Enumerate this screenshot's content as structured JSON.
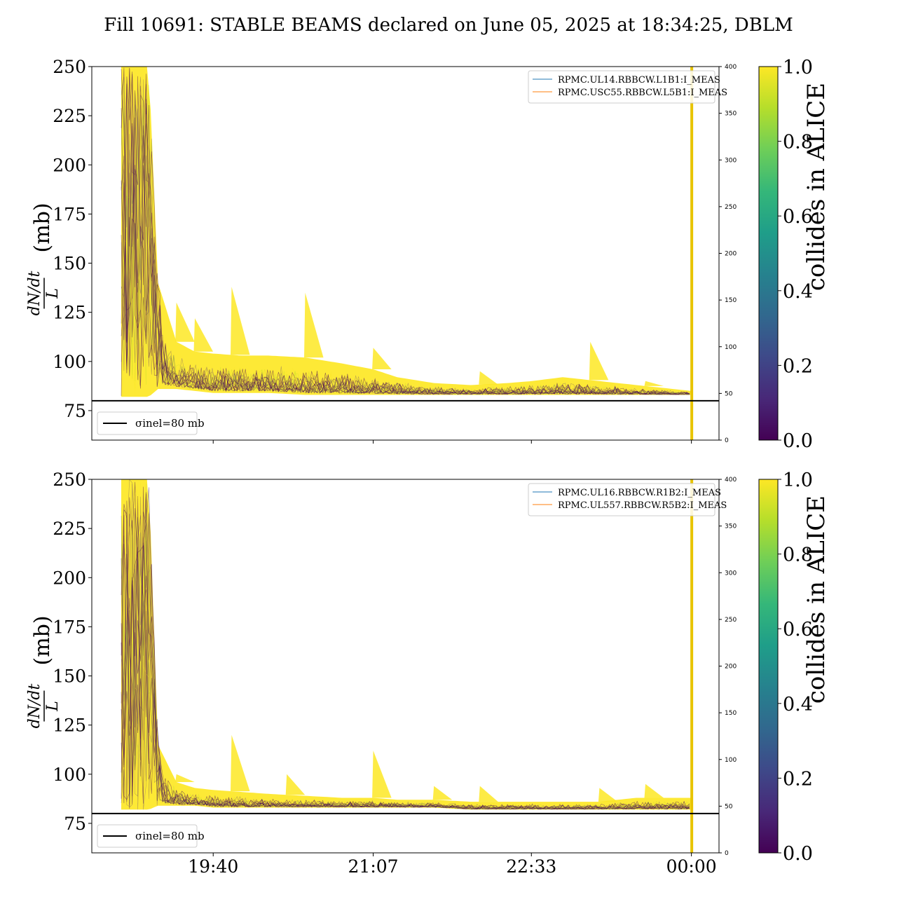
{
  "title": "Fill 10691: STABLE BEAMS declared on June 05, 2025 at 18:34:25, DBLM",
  "colors": {
    "viridis": [
      "#440154",
      "#482878",
      "#3e4989",
      "#31688e",
      "#26828e",
      "#1f9e89",
      "#35b779",
      "#6ece58",
      "#b5de2b",
      "#fde725"
    ],
    "line_blue": "#1f77b4",
    "line_orange": "#ff7f0e",
    "reference_line": "#000000",
    "marker_line": "#e8c400"
  },
  "chart_data": [
    {
      "type": "line",
      "panel": "top",
      "ylabel_numerator": "dN/dt",
      "ylabel_denominator": "L",
      "ylabel_unit": "(mb)",
      "ylim": [
        60,
        250
      ],
      "yticks": [
        75,
        100,
        125,
        150,
        175,
        200,
        225,
        250
      ],
      "y2lim": [
        0,
        400
      ],
      "y2ticks": [
        0,
        50,
        100,
        150,
        200,
        250,
        300,
        350,
        400
      ],
      "x_time_range": [
        "18:34",
        "00:15"
      ],
      "xticks": [
        "19:40",
        "21:07",
        "22:33",
        "00:00"
      ],
      "legend": [
        "RPMC.UL14.RBBCW.L1B1:I_MEAS",
        "RPMC.USC55.RBBCW.L5B1:I_MEAS"
      ],
      "legend_placement": "top-right",
      "reference": {
        "label": "σinel=80 mb",
        "y": 80,
        "legend_placement": "bottom-left"
      },
      "marker_time": "00:00",
      "colorbar": {
        "label": "collides in ALICE",
        "range": [
          0.0,
          1.0
        ],
        "ticks": [
          "0.0",
          "0.2",
          "0.4",
          "0.6",
          "0.8",
          "1.0"
        ]
      },
      "envelope": {
        "times": [
          "18:50",
          "19:00",
          "19:05",
          "19:10",
          "19:20",
          "19:30",
          "19:40",
          "19:55",
          "20:10",
          "20:30",
          "20:50",
          "21:07",
          "21:20",
          "21:40",
          "22:00",
          "22:20",
          "22:33",
          "22:50",
          "23:10",
          "23:30",
          "23:50",
          "00:00"
        ],
        "upper": [
          250,
          250,
          250,
          140,
          110,
          105,
          104,
          103,
          103,
          102,
          99,
          96,
          92,
          89,
          88,
          89,
          90,
          92,
          90,
          88,
          86,
          85
        ],
        "lower": [
          82,
          82,
          82,
          86,
          86,
          85,
          84,
          84,
          84,
          83,
          83,
          83,
          83,
          83,
          83,
          83,
          83,
          83,
          83,
          83,
          83,
          83
        ]
      },
      "spikes": [
        {
          "time": "19:20",
          "value": 130
        },
        {
          "time": "19:30",
          "value": 122
        },
        {
          "time": "19:50",
          "value": 138
        },
        {
          "time": "20:30",
          "value": 135
        },
        {
          "time": "21:07",
          "value": 107
        },
        {
          "time": "22:05",
          "value": 95
        },
        {
          "time": "23:05",
          "value": 110
        },
        {
          "time": "23:35",
          "value": 90
        }
      ]
    },
    {
      "type": "line",
      "panel": "bottom",
      "ylabel_numerator": "dN/dt",
      "ylabel_denominator": "L",
      "ylabel_unit": "(mb)",
      "ylim": [
        60,
        250
      ],
      "yticks": [
        75,
        100,
        125,
        150,
        175,
        200,
        225,
        250
      ],
      "y2lim": [
        0,
        400
      ],
      "y2ticks": [
        0,
        50,
        100,
        150,
        200,
        250,
        300,
        350,
        400
      ],
      "x_time_range": [
        "18:34",
        "00:15"
      ],
      "xticks": [
        "19:40",
        "21:07",
        "22:33",
        "00:00"
      ],
      "legend": [
        "RPMC.UL16.RBBCW.R1B2:I_MEAS",
        "RPMC.UL557.RBBCW.R5B2:I_MEAS"
      ],
      "legend_placement": "top-right",
      "reference": {
        "label": "σinel=80 mb",
        "y": 80,
        "legend_placement": "bottom-left"
      },
      "marker_time": "00:00",
      "colorbar": {
        "label": "collides in ALICE",
        "range": [
          0.0,
          1.0
        ],
        "ticks": [
          "0.0",
          "0.2",
          "0.4",
          "0.6",
          "0.8",
          "1.0"
        ]
      },
      "envelope": {
        "times": [
          "18:50",
          "19:00",
          "19:05",
          "19:10",
          "19:20",
          "19:30",
          "19:40",
          "19:55",
          "20:10",
          "20:30",
          "20:50",
          "21:07",
          "21:20",
          "21:40",
          "22:00",
          "22:20",
          "22:33",
          "22:50",
          "23:10",
          "23:30",
          "23:50",
          "00:00"
        ],
        "upper": [
          250,
          250,
          250,
          115,
          96,
          93,
          92,
          91,
          90,
          89,
          88,
          88,
          87,
          87,
          86,
          86,
          86,
          86,
          86,
          88,
          88,
          88
        ],
        "lower": [
          82,
          82,
          82,
          84,
          84,
          84,
          83,
          83,
          83,
          83,
          83,
          83,
          83,
          83,
          82,
          82,
          82,
          82,
          82,
          82,
          82,
          82
        ]
      },
      "spikes": [
        {
          "time": "19:20",
          "value": 100
        },
        {
          "time": "19:50",
          "value": 120
        },
        {
          "time": "20:20",
          "value": 100
        },
        {
          "time": "21:07",
          "value": 112
        },
        {
          "time": "21:40",
          "value": 94
        },
        {
          "time": "22:05",
          "value": 94
        },
        {
          "time": "23:10",
          "value": 93
        },
        {
          "time": "23:35",
          "value": 95
        }
      ]
    }
  ]
}
